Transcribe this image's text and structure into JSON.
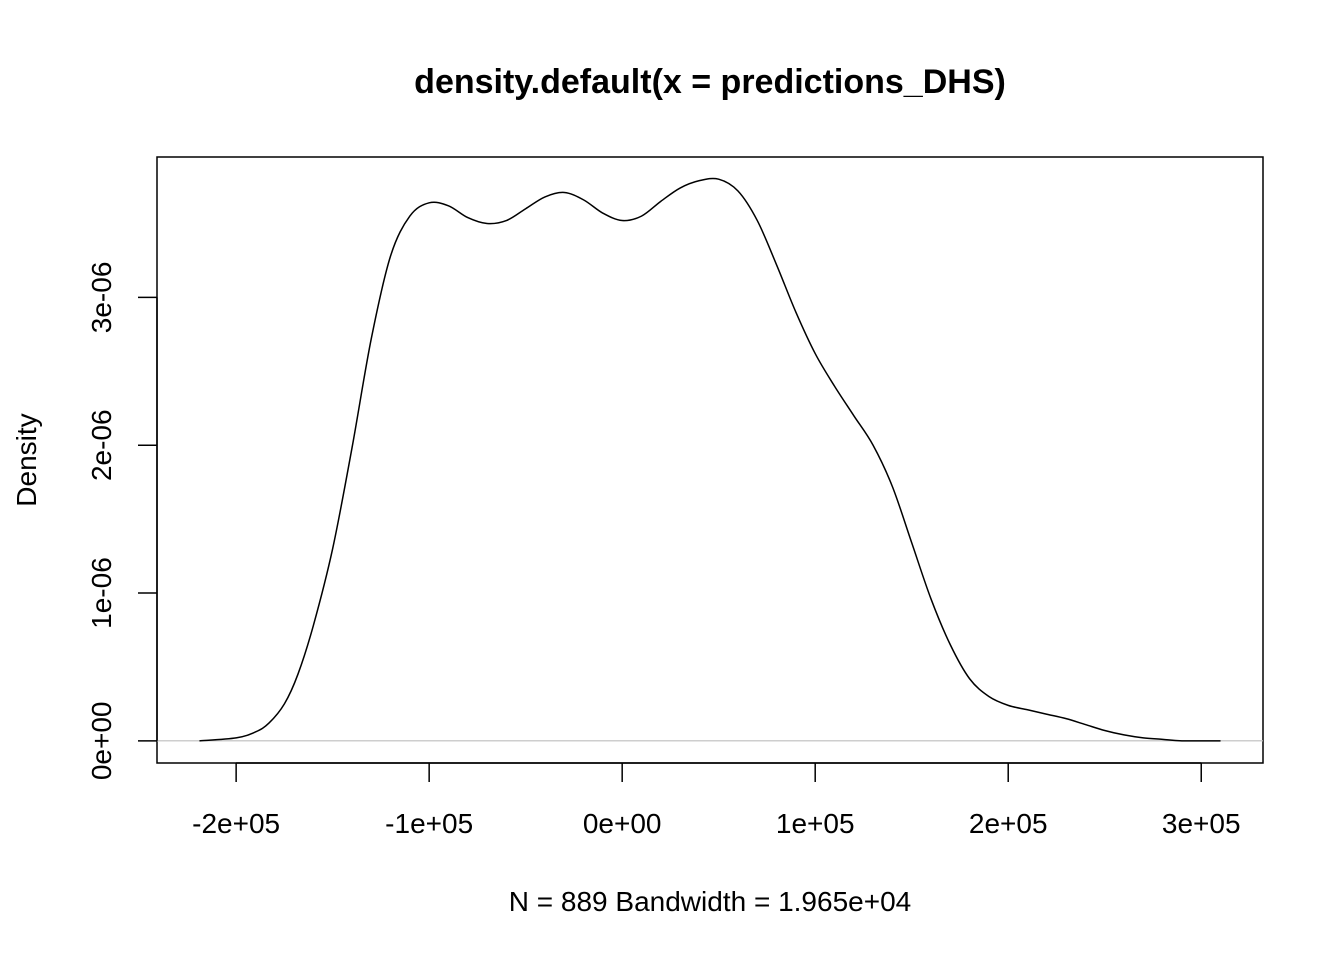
{
  "chart_data": {
    "type": "line",
    "title": "density.default(x = predictions_DHS)",
    "xlabel": "N = 889   Bandwidth = 1.965e+04",
    "ylabel": "Density",
    "xlim": [
      -241000,
      332000
    ],
    "ylim": [
      -1.5e-07,
      3.95e-06
    ],
    "x_ticks": [
      {
        "value": -200000,
        "label": "-2e+05"
      },
      {
        "value": -100000,
        "label": "-1e+05"
      },
      {
        "value": 0,
        "label": "0e+00"
      },
      {
        "value": 100000,
        "label": "1e+05"
      },
      {
        "value": 200000,
        "label": "2e+05"
      },
      {
        "value": 300000,
        "label": "3e+05"
      }
    ],
    "y_ticks": [
      {
        "value": 0,
        "label": "0e+00"
      },
      {
        "value": 1e-06,
        "label": "1e-06"
      },
      {
        "value": 2e-06,
        "label": "2e-06"
      },
      {
        "value": 3e-06,
        "label": "3e-06"
      }
    ],
    "baseline": 0,
    "grid": false,
    "series": [
      {
        "x": [
          -219000,
          -200000,
          -190000,
          -183000,
          -175000,
          -168000,
          -160000,
          -150000,
          -140000,
          -130000,
          -120000,
          -110000,
          -100000,
          -90000,
          -80000,
          -70000,
          -60000,
          -50000,
          -40000,
          -30000,
          -20000,
          -10000,
          0,
          10000,
          20000,
          30000,
          40000,
          50000,
          60000,
          70000,
          80000,
          90000,
          100000,
          110000,
          120000,
          130000,
          140000,
          150000,
          160000,
          170000,
          180000,
          190000,
          200000,
          210000,
          220000,
          230000,
          240000,
          250000,
          260000,
          270000,
          280000,
          290000,
          310000
        ],
        "y": [
          0.0,
          2e-08,
          6e-08,
          1.2e-07,
          2.5e-07,
          4.5e-07,
          7.8e-07,
          1.3e-06,
          1.98e-06,
          2.72e-06,
          3.28e-06,
          3.55e-06,
          3.64e-06,
          3.62e-06,
          3.54e-06,
          3.5e-06,
          3.52e-06,
          3.6e-06,
          3.68e-06,
          3.71e-06,
          3.66e-06,
          3.57e-06,
          3.52e-06,
          3.55e-06,
          3.65e-06,
          3.74e-06,
          3.79e-06,
          3.8e-06,
          3.72e-06,
          3.52e-06,
          3.22e-06,
          2.9e-06,
          2.62e-06,
          2.4e-06,
          2.2e-06,
          2e-06,
          1.72e-06,
          1.34e-06,
          9.6e-07,
          6.5e-07,
          4.2e-07,
          3e-07,
          2.4e-07,
          2.1e-07,
          1.8e-07,
          1.5e-07,
          1.1e-07,
          7e-08,
          4e-08,
          2e-08,
          1e-08,
          0.0,
          0.0
        ]
      }
    ]
  }
}
